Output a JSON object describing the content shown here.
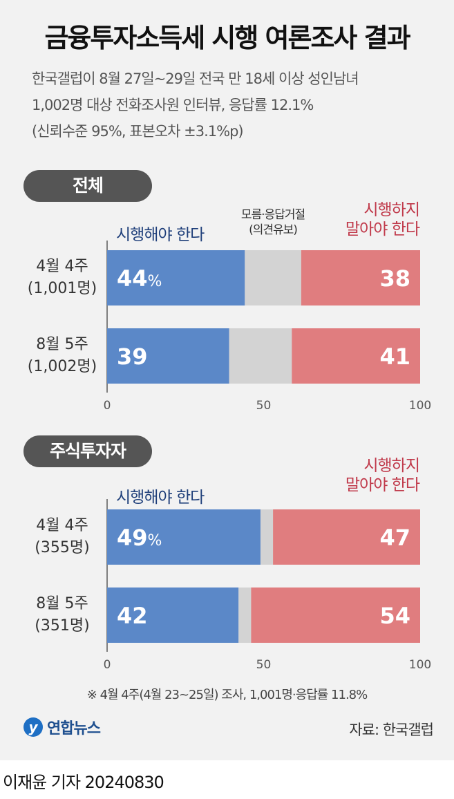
{
  "title": "금융투자소득세 시행 여론조사 결과",
  "subtitle": [
    "한국갤럽이 8월 27일~29일 전국 만 18세 이상 성인남녀",
    "1,002명 대상 전화조사원 인터뷰, 응답률 12.1%",
    "(신뢰수준 95%, 표본오차 ±3.1%p)"
  ],
  "colors": {
    "yes": "#5b88c8",
    "unknown": "#d3d3d3",
    "no": "#e07d7f",
    "yes_text": "#1f3f7a",
    "no_text": "#c0394a"
  },
  "chart_data": [
    {
      "type": "bar",
      "orientation": "horizontal-stacked",
      "title": "전체",
      "series_labels": {
        "yes": "시행해야 한다",
        "unknown": "모름·응답거절 (의견유보)",
        "no": "시행하지 말아야 한다"
      },
      "categories": [
        "4월 4주 (1,001명)",
        "8월 5주 (1,002명)"
      ],
      "series": [
        {
          "name": "시행해야 한다",
          "values": [
            44,
            39
          ]
        },
        {
          "name": "모름·응답거절 (의견유보)",
          "values": [
            18,
            20
          ]
        },
        {
          "name": "시행하지 말아야 한다",
          "values": [
            38,
            41
          ]
        }
      ],
      "xticks": [
        "0",
        "50",
        "100"
      ],
      "xlim": [
        0,
        100
      ]
    },
    {
      "type": "bar",
      "orientation": "horizontal-stacked",
      "title": "주식투자자",
      "series_labels": {
        "yes": "시행해야 한다",
        "no": "시행하지 말아야 한다"
      },
      "categories": [
        "4월 4주 (355명)",
        "8월 5주 (351명)"
      ],
      "series": [
        {
          "name": "시행해야 한다",
          "values": [
            49,
            42
          ]
        },
        {
          "name": "모름·응답거절 (의견유보)",
          "values": [
            4,
            4
          ]
        },
        {
          "name": "시행하지 말아야 한다",
          "values": [
            47,
            54
          ]
        }
      ],
      "xticks": [
        "0",
        "50",
        "100"
      ],
      "xlim": [
        0,
        100
      ]
    }
  ],
  "section1": {
    "pill": "전체",
    "yes_label": "시행해야 한다",
    "unknown_label_1": "모름·응답거절",
    "unknown_label_2": "(의견유보)",
    "no_label_1": "시행하지",
    "no_label_2": "말아야 한다",
    "rows": [
      {
        "line1": "4월 4주",
        "line2": "(1,001명)",
        "yes_text": "44",
        "no_text": "38",
        "pct_suffix": "%"
      },
      {
        "line1": "8월 5주",
        "line2": "(1,002명)",
        "yes_text": "39",
        "no_text": "41",
        "pct_suffix": ""
      }
    ]
  },
  "section2": {
    "pill": "주식투자자",
    "yes_label": "시행해야 한다",
    "no_label_1": "시행하지",
    "no_label_2": "말아야 한다",
    "rows": [
      {
        "line1": "4월 4주",
        "line2": "(355명)",
        "yes_text": "49",
        "no_text": "47",
        "pct_suffix": "%"
      },
      {
        "line1": "8월 5주",
        "line2": "(351명)",
        "yes_text": "42",
        "no_text": "54",
        "pct_suffix": ""
      }
    ]
  },
  "footnote": "※ 4월 4주(4월 23~25일) 조사, 1,001명·응답률 11.8%",
  "logo_text": "연합뉴스",
  "source": "자료: 한국갤럽",
  "byline": "이재윤 기자 20240830"
}
